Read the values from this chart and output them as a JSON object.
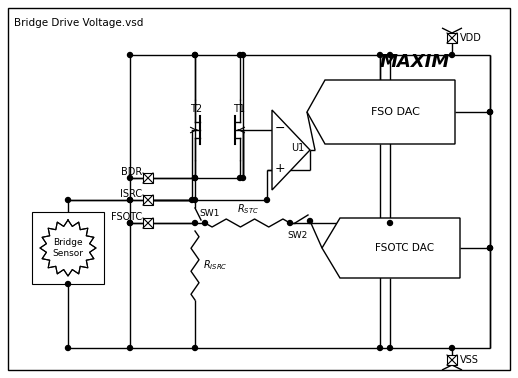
{
  "title": "Bridge Drive Voltage.vsd",
  "bg_color": "#ffffff",
  "vdd_label": "VDD",
  "vss_label": "VSS",
  "bdr_label": "BDR",
  "isrc_label": "ISRC",
  "fsotc_label": "FSOTC",
  "t1_label": "T1",
  "t2_label": "T2",
  "u1_label": "U1",
  "fso_dac_label": "FSO DAC",
  "fsotc_dac_label": "FSOTC DAC",
  "bridge_sensor_label": "Bridge\nSensor",
  "sw1_label": "SW1",
  "sw2_label": "SW2",
  "rstc_label": "R_STC",
  "risrc_label": "R_ISRC",
  "maxim_label": "MAXIM"
}
